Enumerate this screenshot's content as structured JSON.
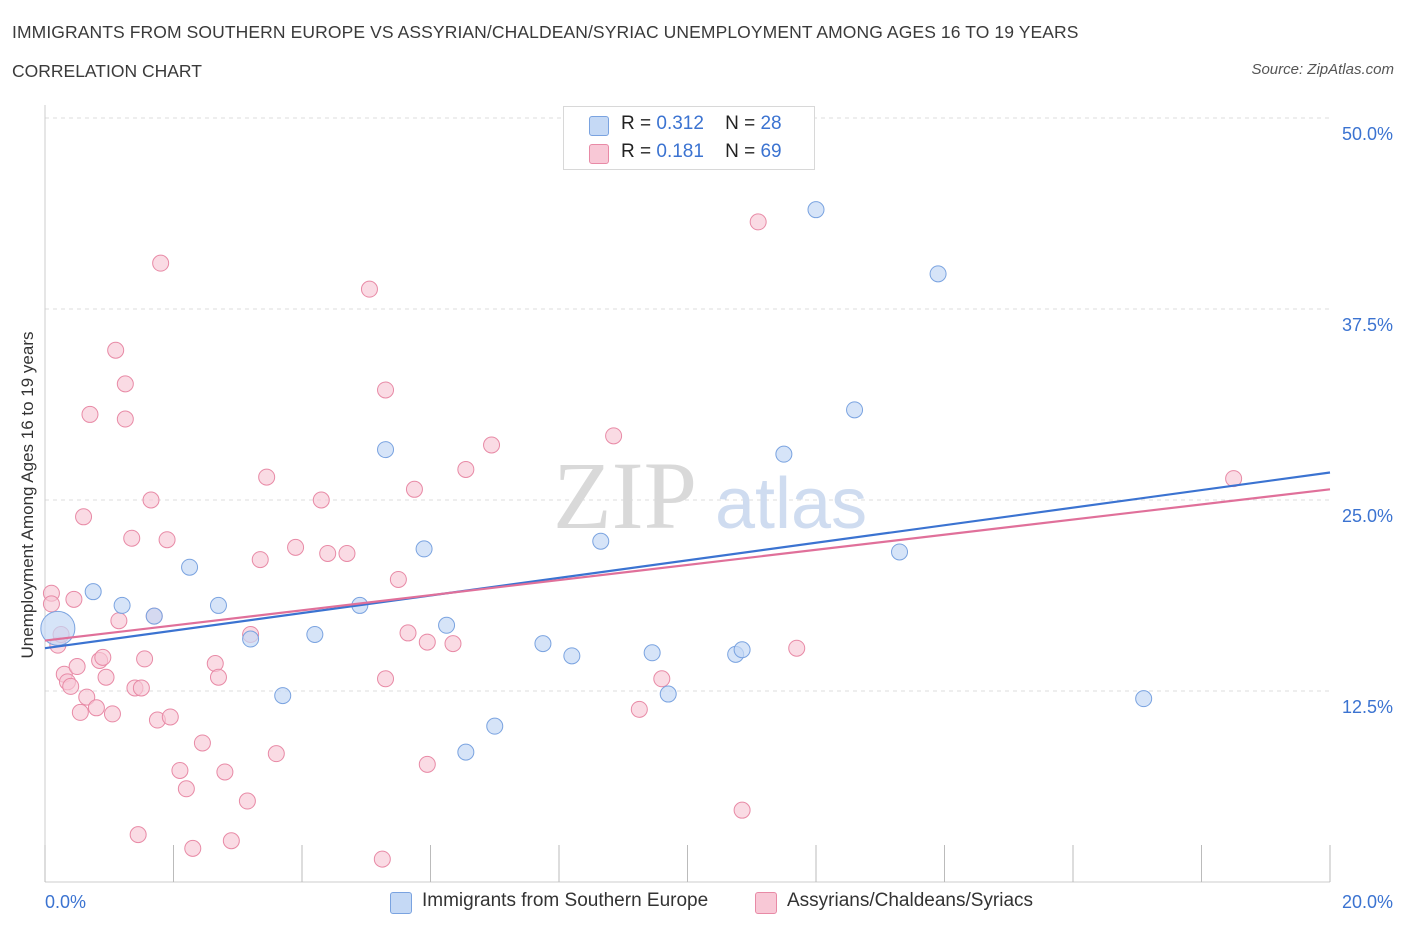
{
  "header": {
    "title": "IMMIGRANTS FROM SOUTHERN EUROPE VS ASSYRIAN/CHALDEAN/SYRIAC UNEMPLOYMENT AMONG AGES 16 TO 19 YEARS",
    "subtitle": "CORRELATION CHART",
    "source": "Source: ZipAtlas.com"
  },
  "watermark": {
    "zip": "ZIP",
    "atlas": "atlas"
  },
  "legend": {
    "row1": {
      "r_label": "R =",
      "r_value": "0.312",
      "n_label": "N =",
      "n_value": "28"
    },
    "row2": {
      "r_label": "R =",
      "r_value": "0.181",
      "n_label": "N =",
      "n_value": "69"
    }
  },
  "colors": {
    "blue_fill": "#c5d9f5",
    "blue_stroke": "#7aa3e0",
    "blue_line": "#3b73d1",
    "pink_fill": "#f8c8d6",
    "pink_stroke": "#e88aa6",
    "pink_line": "#e0709a",
    "tick_label": "#3b73d1",
    "grid": "#dddddd"
  },
  "chart_data": {
    "type": "scatter",
    "xlabel": "",
    "ylabel": "Unemployment Among Ages 16 to 19 years",
    "xlim": [
      0,
      20
    ],
    "ylim": [
      0,
      50
    ],
    "x_tick_labels": [
      "0.0%",
      "20.0%"
    ],
    "y_ticks": [
      12.5,
      25.0,
      37.5,
      50.0
    ],
    "y_tick_labels": [
      "12.5%",
      "25.0%",
      "37.5%",
      "50.0%"
    ],
    "grid": "horizontal dashed",
    "series": [
      {
        "name": "Immigrants from Southern Europe",
        "color": "#7aa3e0",
        "r": 0.312,
        "n": 28,
        "trend": {
          "x": [
            0,
            20
          ],
          "y": [
            15.3,
            26.8
          ]
        },
        "points": [
          {
            "x": 0.2,
            "y": 16.6,
            "big": true
          },
          {
            "x": 0.75,
            "y": 19.0
          },
          {
            "x": 1.2,
            "y": 18.1
          },
          {
            "x": 1.7,
            "y": 17.4
          },
          {
            "x": 2.25,
            "y": 20.6
          },
          {
            "x": 2.7,
            "y": 18.1
          },
          {
            "x": 3.2,
            "y": 15.9
          },
          {
            "x": 3.7,
            "y": 12.2
          },
          {
            "x": 4.2,
            "y": 16.2
          },
          {
            "x": 4.9,
            "y": 18.1
          },
          {
            "x": 5.3,
            "y": 28.3
          },
          {
            "x": 5.9,
            "y": 21.8
          },
          {
            "x": 6.25,
            "y": 16.8
          },
          {
            "x": 6.55,
            "y": 8.5
          },
          {
            "x": 7.0,
            "y": 10.2
          },
          {
            "x": 7.75,
            "y": 15.6
          },
          {
            "x": 8.2,
            "y": 14.8
          },
          {
            "x": 8.65,
            "y": 22.3
          },
          {
            "x": 9.45,
            "y": 15.0
          },
          {
            "x": 9.7,
            "y": 12.3
          },
          {
            "x": 10.75,
            "y": 14.9
          },
          {
            "x": 10.85,
            "y": 15.2
          },
          {
            "x": 11.5,
            "y": 28.0
          },
          {
            "x": 12.0,
            "y": 44.0
          },
          {
            "x": 12.6,
            "y": 30.9
          },
          {
            "x": 13.3,
            "y": 21.6
          },
          {
            "x": 13.9,
            "y": 39.8
          },
          {
            "x": 17.1,
            "y": 12.0
          }
        ]
      },
      {
        "name": "Assyrians/Chaldeans/Syriacs",
        "color": "#e88aa6",
        "r": 0.181,
        "n": 69,
        "trend": {
          "x": [
            0,
            20
          ],
          "y": [
            15.8,
            25.7
          ]
        },
        "points": [
          {
            "x": 0.1,
            "y": 18.9
          },
          {
            "x": 0.1,
            "y": 18.2
          },
          {
            "x": 0.2,
            "y": 15.5
          },
          {
            "x": 0.25,
            "y": 16.2
          },
          {
            "x": 0.3,
            "y": 13.6
          },
          {
            "x": 0.35,
            "y": 13.1
          },
          {
            "x": 0.4,
            "y": 12.8
          },
          {
            "x": 0.45,
            "y": 18.5
          },
          {
            "x": 0.5,
            "y": 14.1
          },
          {
            "x": 0.55,
            "y": 11.1
          },
          {
            "x": 0.6,
            "y": 23.9
          },
          {
            "x": 0.65,
            "y": 12.1
          },
          {
            "x": 0.7,
            "y": 30.6
          },
          {
            "x": 0.8,
            "y": 11.4
          },
          {
            "x": 0.85,
            "y": 14.5
          },
          {
            "x": 0.9,
            "y": 14.7
          },
          {
            "x": 0.95,
            "y": 13.4
          },
          {
            "x": 1.05,
            "y": 11.0
          },
          {
            "x": 1.1,
            "y": 34.8
          },
          {
            "x": 1.15,
            "y": 17.1
          },
          {
            "x": 1.25,
            "y": 30.3
          },
          {
            "x": 1.25,
            "y": 32.6
          },
          {
            "x": 1.35,
            "y": 22.5
          },
          {
            "x": 1.4,
            "y": 12.7
          },
          {
            "x": 1.45,
            "y": 3.1
          },
          {
            "x": 1.5,
            "y": 12.7
          },
          {
            "x": 1.55,
            "y": 14.6
          },
          {
            "x": 1.65,
            "y": 25.0
          },
          {
            "x": 1.7,
            "y": 17.4
          },
          {
            "x": 1.75,
            "y": 10.6
          },
          {
            "x": 1.8,
            "y": 40.5
          },
          {
            "x": 1.9,
            "y": 22.4
          },
          {
            "x": 1.95,
            "y": 10.8
          },
          {
            "x": 2.1,
            "y": 7.3
          },
          {
            "x": 2.2,
            "y": 6.1
          },
          {
            "x": 2.3,
            "y": 2.2
          },
          {
            "x": 2.45,
            "y": 9.1
          },
          {
            "x": 2.65,
            "y": 14.3
          },
          {
            "x": 2.7,
            "y": 13.4
          },
          {
            "x": 2.8,
            "y": 7.2
          },
          {
            "x": 2.9,
            "y": 2.7
          },
          {
            "x": 3.15,
            "y": 5.3
          },
          {
            "x": 3.2,
            "y": 16.2
          },
          {
            "x": 3.35,
            "y": 21.1
          },
          {
            "x": 3.45,
            "y": 26.5
          },
          {
            "x": 3.6,
            "y": 8.4
          },
          {
            "x": 3.9,
            "y": 21.9
          },
          {
            "x": 4.3,
            "y": 25.0
          },
          {
            "x": 4.4,
            "y": 21.5
          },
          {
            "x": 4.7,
            "y": 21.5
          },
          {
            "x": 5.05,
            "y": 38.8
          },
          {
            "x": 5.25,
            "y": 1.5
          },
          {
            "x": 5.3,
            "y": 32.2
          },
          {
            "x": 5.3,
            "y": 13.3
          },
          {
            "x": 5.5,
            "y": 19.8
          },
          {
            "x": 5.65,
            "y": 16.3
          },
          {
            "x": 5.75,
            "y": 25.7
          },
          {
            "x": 5.95,
            "y": 7.7
          },
          {
            "x": 5.95,
            "y": 15.7
          },
          {
            "x": 6.35,
            "y": 15.6
          },
          {
            "x": 6.55,
            "y": 27.0
          },
          {
            "x": 6.95,
            "y": 28.6
          },
          {
            "x": 8.85,
            "y": 29.2
          },
          {
            "x": 9.25,
            "y": 11.3
          },
          {
            "x": 9.6,
            "y": 13.3
          },
          {
            "x": 10.85,
            "y": 4.7
          },
          {
            "x": 11.1,
            "y": 43.2
          },
          {
            "x": 11.7,
            "y": 15.3
          },
          {
            "x": 18.5,
            "y": 26.4
          }
        ]
      }
    ]
  }
}
